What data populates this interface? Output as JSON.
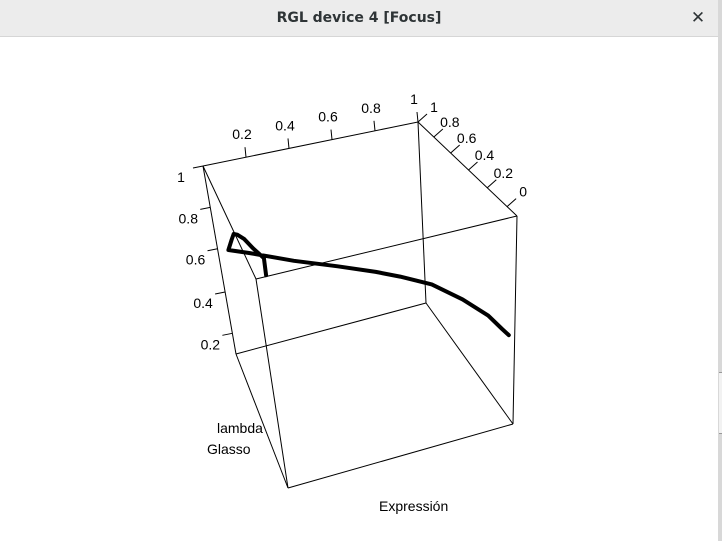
{
  "window": {
    "title": "RGL device 4 [Focus]",
    "close_icon": "close-icon"
  },
  "chart_data": {
    "type": "line",
    "projection": "3d",
    "axes": {
      "x": {
        "label": "Expressión",
        "ticks": []
      },
      "y": {
        "label": "",
        "ticks": [
          "0.2",
          "0.4",
          "0.6",
          "0.8",
          "1"
        ]
      },
      "z": {
        "label": "",
        "ticks": [
          "0",
          "0.2",
          "0.4",
          "0.6",
          "0.8",
          "1"
        ]
      }
    },
    "annotations": [
      "lambda",
      "Glasso"
    ],
    "series": [
      {
        "color": "#000000",
        "points_3d": [
          [
            0.04,
            0.08,
            0.95
          ],
          [
            0.04,
            0.22,
            0.93
          ],
          [
            0.05,
            0.34,
            0.95
          ],
          [
            0.07,
            0.46,
            0.96
          ],
          [
            0.1,
            0.56,
            0.97
          ],
          [
            0.15,
            0.66,
            0.97
          ],
          [
            0.22,
            0.74,
            0.97
          ],
          [
            0.3,
            0.8,
            0.98
          ],
          [
            0.36,
            0.84,
            0.9
          ],
          [
            0.44,
            0.83,
            0.74
          ],
          [
            0.52,
            0.84,
            0.58
          ],
          [
            0.6,
            0.86,
            0.44
          ],
          [
            0.66,
            0.88,
            0.35
          ],
          [
            0.72,
            0.86,
            0.24
          ],
          [
            0.8,
            0.82,
            0.14
          ],
          [
            0.88,
            0.78,
            0.06
          ],
          [
            0.94,
            0.75,
            0.02
          ],
          [
            0.97,
            0.74,
            0.0
          ]
        ]
      }
    ],
    "grid": false,
    "legend": "none"
  }
}
